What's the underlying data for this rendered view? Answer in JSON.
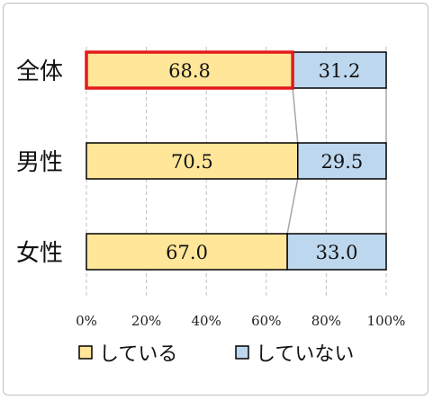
{
  "chart_data": {
    "type": "bar",
    "orientation": "horizontal",
    "stacked": true,
    "categories": [
      "全体",
      "男性",
      "女性"
    ],
    "series": [
      {
        "name": "している",
        "values": [
          68.8,
          70.5,
          67.0
        ],
        "color": "#ffe699"
      },
      {
        "name": "していない",
        "values": [
          31.2,
          29.5,
          33.0
        ],
        "color": "#bdd7ee"
      }
    ],
    "xlim": [
      0,
      100
    ],
    "x_ticks": [
      "0%",
      "20%",
      "40%",
      "60%",
      "80%",
      "100%"
    ],
    "grid": true,
    "grid_style": "dashed-vertical",
    "legend_position": "bottom",
    "highlight_color": "#e31a1c",
    "series_lines": true
  }
}
